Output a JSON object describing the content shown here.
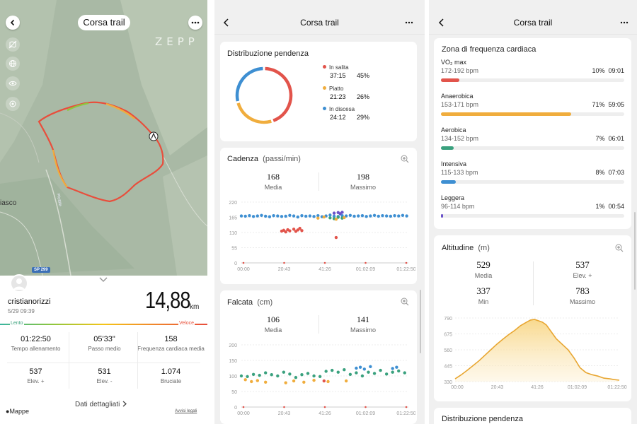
{
  "map_screen": {
    "title": "Corsa trail",
    "brand": "ZEPP",
    "place_label": "iasco",
    "road_label": "SP 299",
    "road_name": "Piottile",
    "user": {
      "name": "cristianorizzi",
      "date": "5/29 09:39"
    },
    "distance": {
      "value": "14,88",
      "unit": "km"
    },
    "speed_scale": {
      "slow": "Lento",
      "fast": "Veloce"
    },
    "stats": [
      {
        "value": "01:22:50",
        "label": "Tempo allenamento"
      },
      {
        "value": "05'33\"",
        "label": "Passo medio"
      },
      {
        "value": "158",
        "label": "Frequenza cardiaca media"
      },
      {
        "value": "537",
        "label": "Elev. +"
      },
      {
        "value": "531",
        "label": "Elev. -"
      },
      {
        "value": "1.074",
        "label": "Bruciate"
      }
    ],
    "details_link": "Dati dettagliati",
    "maps_credit": "Mappe",
    "legal": "Avvisi legali"
  },
  "screen2": {
    "title": "Corsa trail",
    "slope": {
      "title": "Distribuzione pendenza",
      "items": [
        {
          "label": "In salita",
          "time": "37:15",
          "pct": "45%",
          "color": "#e2544b",
          "share": 45
        },
        {
          "label": "Piatto",
          "time": "21:23",
          "pct": "26%",
          "color": "#f0ad3d",
          "share": 26
        },
        {
          "label": "In discesa",
          "time": "24:12",
          "pct": "29%",
          "color": "#3e8fd2",
          "share": 29
        }
      ]
    },
    "cadence": {
      "title": "Cadenza",
      "unit": "(passi/min)",
      "avg": {
        "value": "168",
        "label": "Media"
      },
      "max": {
        "value": "198",
        "label": "Massimo"
      }
    },
    "stride": {
      "title": "Falcata",
      "unit": "(cm)",
      "avg": {
        "value": "106",
        "label": "Media"
      },
      "max": {
        "value": "141",
        "label": "Massimo"
      }
    }
  },
  "screen3": {
    "title": "Corsa trail",
    "hr_zones": {
      "title": "Zona di frequenza cardiaca",
      "zones": [
        {
          "name": "VO₂ max",
          "range": "172-192 bpm",
          "pct": "10%",
          "time": "09:01",
          "color": "#e2544b",
          "share": 10
        },
        {
          "name": "Anaerobica",
          "range": "153-171 bpm",
          "pct": "71%",
          "time": "59:05",
          "color": "#f0ad3d",
          "share": 71
        },
        {
          "name": "Aerobica",
          "range": "134-152 bpm",
          "pct": "7%",
          "time": "06:01",
          "color": "#3aa17e",
          "share": 7
        },
        {
          "name": "Intensiva",
          "range": "115-133 bpm",
          "pct": "8%",
          "time": "07:03",
          "color": "#3e8fd2",
          "share": 8
        },
        {
          "name": "Leggera",
          "range": "96-114 bpm",
          "pct": "1%",
          "time": "00:54",
          "color": "#6a52c9",
          "share": 1
        }
      ]
    },
    "altitude": {
      "title": "Altitudine",
      "unit": "(m)",
      "avg": {
        "value": "529",
        "label": "Media"
      },
      "gain": {
        "value": "537",
        "label": "Elev. +"
      },
      "min": {
        "value": "337",
        "label": "Min"
      },
      "max": {
        "value": "783",
        "label": "Massimo"
      }
    },
    "next_card_title": "Distribuzione pendenza"
  },
  "chart_data": [
    {
      "type": "pie",
      "labels": [
        "In salita",
        "Piatto",
        "In discesa"
      ],
      "values": [
        45,
        26,
        29
      ],
      "colors": [
        "#e2544b",
        "#f0ad3d",
        "#3e8fd2"
      ]
    },
    {
      "type": "scatter",
      "ylim": [
        0,
        220
      ],
      "yticks": [
        "0",
        "55",
        "110",
        "165",
        "220"
      ],
      "xticks": [
        "00:00",
        "20:43",
        "41:26",
        "01:02:09",
        "01:22:50"
      ],
      "x_range_min": [
        0,
        82.83
      ],
      "series": [
        {
          "color": "#3e8fd2",
          "x": [
            0,
            2,
            4,
            6,
            8,
            10,
            12,
            14,
            16,
            18,
            20,
            22,
            24,
            26,
            28,
            30,
            32,
            34,
            36,
            38,
            40,
            42,
            44,
            46,
            48,
            50,
            52,
            54,
            56,
            58,
            60,
            62,
            64,
            66,
            68,
            70,
            72,
            74,
            76,
            78,
            80,
            82
          ],
          "y": [
            170,
            169,
            171,
            168,
            170,
            172,
            169,
            167,
            171,
            170,
            168,
            169,
            172,
            170,
            166,
            171,
            169,
            170,
            168,
            171,
            167,
            170,
            173,
            169,
            168,
            171,
            170,
            172,
            169,
            170,
            171,
            168,
            170,
            172,
            169,
            171,
            170,
            169,
            171,
            170,
            172,
            170
          ]
        },
        {
          "color": "#3aa17e",
          "x": [
            44,
            46,
            48,
            50
          ],
          "y": [
            163,
            160,
            165,
            162
          ]
        },
        {
          "color": "#f0ad3d",
          "x": [
            38,
            41,
            47,
            51
          ],
          "y": [
            162,
            166,
            158,
            164
          ]
        },
        {
          "color": "#6a52c9",
          "x": [
            46,
            48,
            49,
            50
          ],
          "y": [
            180,
            182,
            178,
            183
          ]
        },
        {
          "color": "#e2544b",
          "x": [
            20,
            21,
            22,
            23,
            24,
            26,
            27,
            28,
            29,
            30,
            47
          ],
          "y": [
            115,
            118,
            112,
            120,
            116,
            122,
            114,
            119,
            125,
            117,
            92
          ]
        }
      ]
    },
    {
      "type": "scatter",
      "ylim": [
        0,
        200
      ],
      "yticks": [
        "0",
        "50",
        "100",
        "150",
        "200"
      ],
      "xticks": [
        "00:00",
        "20:43",
        "41:26",
        "01:02:09",
        "01:22:50"
      ],
      "x_range_min": [
        0,
        82.83
      ],
      "series": [
        {
          "color": "#3aa17e",
          "x": [
            0,
            3,
            6,
            9,
            12,
            15,
            18,
            21,
            24,
            27,
            30,
            33,
            36,
            39,
            42,
            45,
            48,
            51,
            54,
            57,
            60,
            63,
            66,
            69,
            72,
            75,
            78,
            81
          ],
          "y": [
            100,
            98,
            105,
            102,
            110,
            104,
            100,
            112,
            106,
            95,
            104,
            108,
            100,
            98,
            115,
            118,
            112,
            120,
            105,
            110,
            100,
            112,
            108,
            118,
            106,
            112,
            116,
            110
          ]
        },
        {
          "color": "#f0ad3d",
          "x": [
            2,
            5,
            8,
            12,
            22,
            26,
            31,
            36,
            43,
            52
          ],
          "y": [
            88,
            82,
            85,
            80,
            78,
            84,
            80,
            86,
            82,
            84
          ]
        },
        {
          "color": "#3e8fd2",
          "x": [
            57,
            59,
            61,
            64,
            75,
            77
          ],
          "y": [
            125,
            128,
            122,
            130,
            124,
            128
          ]
        },
        {
          "color": "#e2544b",
          "x": [
            41
          ],
          "y": [
            84
          ]
        }
      ]
    },
    {
      "type": "area",
      "ylim": [
        330,
        790
      ],
      "yticks": [
        "330",
        "445",
        "560",
        "675",
        "790"
      ],
      "xticks": [
        "00:00",
        "20:43",
        "41:26",
        "01:02:09",
        "01:22:50"
      ],
      "x_min": [
        0,
        3,
        6,
        9,
        12,
        15,
        18,
        21,
        24,
        27,
        30,
        33,
        36,
        38,
        40,
        42,
        44,
        46,
        48,
        51,
        54,
        57,
        60,
        63,
        66,
        69,
        72,
        75,
        78,
        80,
        82.8
      ],
      "y": [
        350,
        378,
        410,
        445,
        480,
        520,
        560,
        600,
        635,
        670,
        700,
        735,
        760,
        775,
        780,
        770,
        760,
        740,
        700,
        640,
        600,
        560,
        500,
        430,
        395,
        380,
        370,
        355,
        350,
        345,
        340
      ]
    }
  ]
}
